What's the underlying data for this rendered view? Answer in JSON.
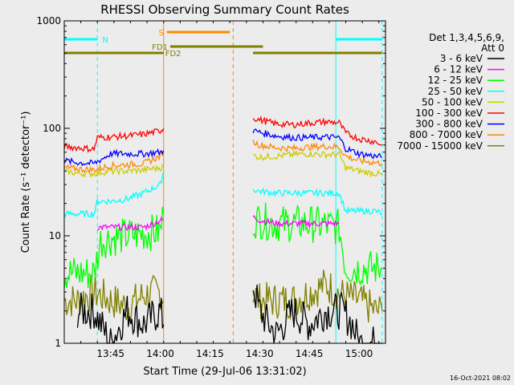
{
  "chart_data": {
    "type": "line",
    "title": "RHESSI Observing Summary Count Rates",
    "xlabel": "Start Time (29-Jul-06 13:31:02)",
    "ylabel": "Count Rate (s⁻¹ detector⁻¹)",
    "y_scale": "log",
    "ylim": [
      1,
      1000
    ],
    "xlim": [
      "13:31",
      "15:08"
    ],
    "x_ticks": [
      "13:45",
      "14:00",
      "14:15",
      "14:30",
      "14:45",
      "15:00"
    ],
    "y_ticks": [
      "1",
      "10",
      "100",
      "1000"
    ],
    "legend_title": [
      "Det 1,3,4,5,6,9,",
      "Att 0"
    ],
    "legend_position": "right",
    "footer": "16-Oct-2021 08:02",
    "series": [
      {
        "name": "3 - 6 keV",
        "color": "#000000",
        "segments": [
          {
            "x": [
              "13:35",
              "13:40",
              "13:45",
              "13:50",
              "13:55",
              "14:00",
              "14:01"
            ],
            "y": [
              2.0,
              2.0,
              1.0,
              2.0,
              1.5,
              2.0,
              1.5
            ]
          },
          {
            "x": [
              "14:28",
              "14:30",
              "14:35",
              "14:40",
              "14:45",
              "14:50",
              "14:55",
              "14:58",
              "15:00",
              "15:05",
              "15:07"
            ],
            "y": [
              3.5,
              2.0,
              1.2,
              2.0,
              1.5,
              2.0,
              2.0,
              1.5,
              1.0,
              1.0,
              1.0
            ]
          }
        ]
      },
      {
        "name": "6 - 12 keV",
        "color": "#ff00ff",
        "segments": [
          {
            "x": [
              "13:41",
              "13:45",
              "13:50",
              "13:55",
              "13:58",
              "14:00",
              "14:01"
            ],
            "y": [
              12,
              12,
              12,
              12,
              13,
              14,
              14
            ]
          },
          {
            "x": [
              "14:28",
              "14:30",
              "14:35",
              "14:40",
              "14:45",
              "14:50",
              "14:54"
            ],
            "y": [
              15,
              14,
              13,
              13,
              13,
              13,
              13
            ]
          }
        ]
      },
      {
        "name": "12 - 25 keV",
        "color": "#00ff00",
        "segments": [
          {
            "x": [
              "13:31",
              "13:35",
              "13:40",
              "13:42",
              "13:45",
              "13:50",
              "13:55",
              "14:00",
              "14:01"
            ],
            "y": [
              4.5,
              4.5,
              4.5,
              9.0,
              9.5,
              10,
              10.5,
              11,
              16
            ]
          },
          {
            "x": [
              "14:28",
              "14:30",
              "14:35",
              "14:40",
              "14:45",
              "14:50",
              "14:54",
              "14:56",
              "15:00",
              "15:05",
              "15:07"
            ],
            "y": [
              14,
              14,
              13,
              13,
              13,
              12.5,
              12,
              5.0,
              5.0,
              5.0,
              5.0
            ]
          }
        ]
      },
      {
        "name": "25 - 50 keV",
        "color": "#00ffff",
        "segments": [
          {
            "x": [
              "13:31",
              "13:35",
              "13:40",
              "13:41",
              "13:45",
              "13:50",
              "13:55",
              "14:00",
              "14:01"
            ],
            "y": [
              16,
              16,
              16,
              21,
              21,
              22,
              25,
              30,
              40
            ]
          },
          {
            "x": [
              "14:28",
              "14:30",
              "14:35",
              "14:40",
              "14:45",
              "14:50",
              "14:54",
              "14:56",
              "15:00",
              "15:05",
              "15:07"
            ],
            "y": [
              27,
              26,
              25,
              25,
              25,
              25,
              25,
              17,
              17,
              17,
              16
            ]
          }
        ]
      },
      {
        "name": "50 - 100 keV",
        "color": "#cccc00",
        "segments": [
          {
            "x": [
              "13:31",
              "13:35",
              "13:40",
              "13:45",
              "13:50",
              "13:55",
              "14:00",
              "14:01"
            ],
            "y": [
              40,
              38,
              38,
              40,
              40,
              41,
              43,
              44
            ]
          },
          {
            "x": [
              "14:28",
              "14:30",
              "14:35",
              "14:40",
              "14:45",
              "14:50",
              "14:54",
              "14:56",
              "15:00",
              "15:05",
              "15:07"
            ],
            "y": [
              56,
              54,
              55,
              57,
              58,
              57,
              57,
              43,
              40,
              38,
              37
            ]
          }
        ]
      },
      {
        "name": "100 - 300 keV",
        "color": "#ff0000",
        "segments": [
          {
            "x": [
              "13:31",
              "13:35",
              "13:40",
              "13:41",
              "13:45",
              "13:50",
              "13:55",
              "14:00",
              "14:01"
            ],
            "y": [
              68,
              66,
              64,
              82,
              83,
              85,
              88,
              95,
              100
            ]
          },
          {
            "x": [
              "14:28",
              "14:30",
              "14:35",
              "14:40",
              "14:45",
              "14:50",
              "14:54",
              "14:56",
              "15:00",
              "15:05",
              "15:07"
            ],
            "y": [
              125,
              120,
              110,
              108,
              112,
              115,
              113,
              90,
              80,
              75,
              70
            ]
          }
        ]
      },
      {
        "name": "300 - 800 keV",
        "color": "#0000ff",
        "segments": [
          {
            "x": [
              "13:31",
              "13:35",
              "13:40",
              "13:45",
              "13:50",
              "13:55",
              "14:00",
              "14:01"
            ],
            "y": [
              50,
              48,
              47,
              58,
              58,
              58,
              60,
              62
            ]
          },
          {
            "x": [
              "14:28",
              "14:30",
              "14:35",
              "14:40",
              "14:45",
              "14:50",
              "14:54",
              "14:56",
              "15:00",
              "15:05",
              "15:07"
            ],
            "y": [
              95,
              92,
              85,
              82,
              82,
              83,
              82,
              65,
              58,
              55,
              54
            ]
          }
        ]
      },
      {
        "name": "800 - 7000 keV",
        "color": "#ff8800",
        "segments": [
          {
            "x": [
              "13:31",
              "13:35",
              "13:40",
              "13:45",
              "13:50",
              "13:55",
              "14:00",
              "14:01"
            ],
            "y": [
              43,
              42,
              41,
              45,
              46,
              47,
              55,
              62
            ]
          },
          {
            "x": [
              "14:28",
              "14:30",
              "14:35",
              "14:40",
              "14:45",
              "14:50",
              "14:54",
              "14:56",
              "15:00",
              "15:05",
              "15:07"
            ],
            "y": [
              75,
              70,
              66,
              65,
              67,
              68,
              67,
              55,
              50,
              48,
              47
            ]
          }
        ]
      },
      {
        "name": "7000 - 15000 keV",
        "color": "#808000",
        "segments": [
          {
            "x": [
              "13:31",
              "13:35",
              "13:40",
              "13:45",
              "13:50",
              "13:55",
              "14:00",
              "14:01"
            ],
            "y": [
              2.5,
              2.5,
              3.0,
              2.5,
              2.2,
              2.8,
              3.0,
              2.5
            ]
          },
          {
            "x": [
              "14:28",
              "14:30",
              "14:35",
              "14:40",
              "14:45",
              "14:50",
              "14:55",
              "15:00",
              "15:05",
              "15:07"
            ],
            "y": [
              3.0,
              2.5,
              2.5,
              2.5,
              3.0,
              3.5,
              2.8,
              2.5,
              2.0,
              2.0
            ]
          }
        ]
      }
    ],
    "flag_bars": [
      {
        "label": "N",
        "color": "#00ffff",
        "segments": [
          [
            "13:31",
            "13:41"
          ],
          [
            "14:53",
            "15:07"
          ]
        ],
        "level": 1
      },
      {
        "label": "S",
        "color": "#ff8800",
        "segments": [
          [
            "14:02",
            "14:21"
          ]
        ],
        "level": 0
      },
      {
        "label": "FD1",
        "color": "#808000",
        "segments": [
          [
            "14:03",
            "14:31"
          ]
        ],
        "level": 2
      },
      {
        "label": "FD2",
        "color": "#808000",
        "segments": [
          [
            "13:31",
            "14:01"
          ],
          [
            "14:28",
            "15:07"
          ]
        ],
        "level": 3
      }
    ],
    "vertical_markers": [
      {
        "time": "13:31",
        "color": "#00ffff",
        "style": "solid"
      },
      {
        "time": "13:41",
        "color": "#00ffff",
        "style": "dashed"
      },
      {
        "time": "14:01",
        "color": "#ff8800",
        "style": "solid"
      },
      {
        "time": "14:22",
        "color": "#ff8800",
        "style": "dashed"
      },
      {
        "time": "14:53",
        "color": "#00ffff",
        "style": "solid"
      },
      {
        "time": "15:07",
        "color": "#00ffff",
        "style": "dashed"
      }
    ]
  }
}
